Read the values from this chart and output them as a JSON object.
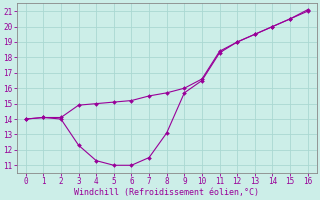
{
  "line1_x": [
    0,
    1,
    2,
    3,
    4,
    5,
    6,
    7,
    8,
    9,
    10,
    11,
    12,
    13,
    14,
    15,
    16
  ],
  "line1_y": [
    14.0,
    14.1,
    14.0,
    12.3,
    11.3,
    11.0,
    11.0,
    11.5,
    13.1,
    15.7,
    16.5,
    18.3,
    19.0,
    19.5,
    20.0,
    20.5,
    21.0
  ],
  "line2_x": [
    0,
    1,
    2,
    3,
    4,
    5,
    6,
    7,
    8,
    9,
    10,
    11,
    12,
    13,
    14,
    15,
    16
  ],
  "line2_y": [
    14.0,
    14.1,
    14.1,
    14.9,
    15.0,
    15.1,
    15.2,
    15.5,
    15.7,
    16.0,
    16.6,
    18.4,
    19.0,
    19.5,
    20.0,
    20.5,
    21.1
  ],
  "line_color": "#990099",
  "marker": "D",
  "markersize": 2.0,
  "linewidth": 0.8,
  "bg_color": "#cceee8",
  "grid_color": "#aad8d2",
  "xlabel": "Windchill (Refroidissement éolien,°C)",
  "xlabel_color": "#990099",
  "tick_color": "#990099",
  "spine_color": "#888888",
  "xlim": [
    -0.5,
    16.5
  ],
  "ylim": [
    10.5,
    21.5
  ],
  "xticks": [
    0,
    1,
    2,
    3,
    4,
    5,
    6,
    7,
    8,
    9,
    10,
    11,
    12,
    13,
    14,
    15,
    16
  ],
  "yticks": [
    11,
    12,
    13,
    14,
    15,
    16,
    17,
    18,
    19,
    20,
    21
  ],
  "tick_labelsize": 5.5,
  "xlabel_fontsize": 6.0
}
